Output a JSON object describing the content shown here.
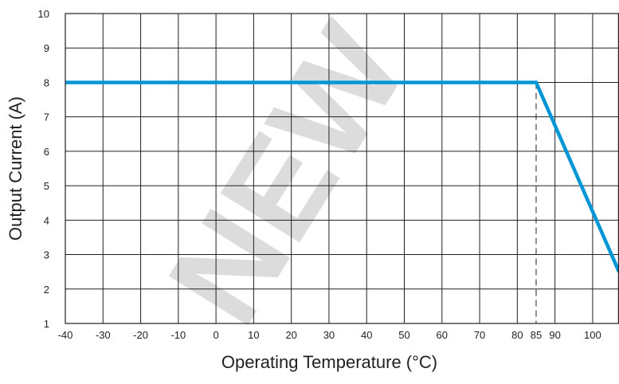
{
  "chart_data": {
    "type": "line",
    "x_ticks": [
      -40,
      -30,
      -20,
      -10,
      0,
      10,
      20,
      30,
      40,
      50,
      60,
      70,
      80,
      85,
      90,
      100
    ],
    "y_ticks": [
      1,
      2,
      3,
      4,
      5,
      6,
      7,
      8,
      9,
      10
    ],
    "xlim": [
      -40,
      107
    ],
    "ylim": [
      1,
      10
    ],
    "xlabel": "Operating Temperature (°C)",
    "ylabel": "Output Current (A)",
    "grid": true,
    "series": [
      {
        "color": "#0096d6",
        "x": [
          -40,
          85,
          107
        ],
        "y": [
          8,
          8,
          2.5
        ]
      }
    ],
    "annotations": [
      {
        "type": "dashed-vertical-line",
        "x": 85,
        "y_from": 1,
        "y_to": 8
      }
    ]
  },
  "colors": {
    "axis": "#231f20",
    "series": "#0096d6",
    "watermark": "#6ec6ee"
  },
  "watermark": {
    "text": "NEW"
  }
}
